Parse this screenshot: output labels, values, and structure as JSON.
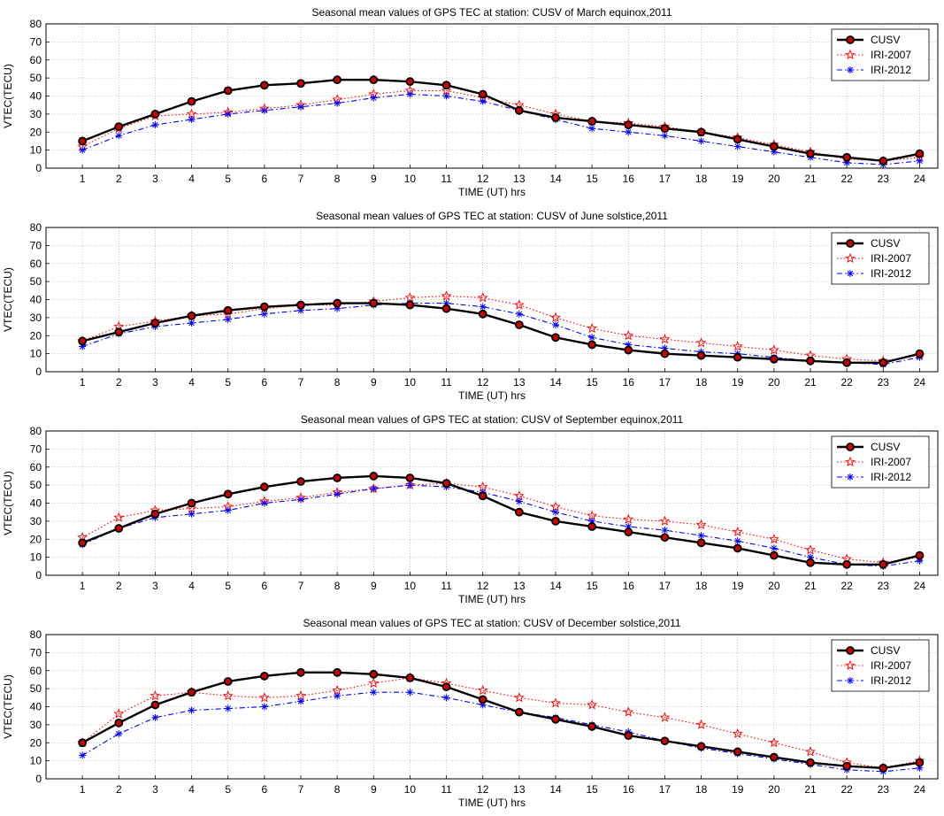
{
  "chart_data": [
    {
      "type": "line",
      "title": "Seasonal mean values of GPS TEC at station: CUSV of March equinox,2011",
      "xlabel": "TIME (UT) hrs",
      "ylabel": "VTEC(TECU)",
      "xlim": [
        0,
        24.5
      ],
      "ylim": [
        0,
        80
      ],
      "x": [
        1,
        2,
        3,
        4,
        5,
        6,
        7,
        8,
        9,
        10,
        11,
        12,
        13,
        14,
        15,
        16,
        17,
        18,
        19,
        20,
        21,
        22,
        23,
        24
      ],
      "yticks": [
        0,
        10,
        20,
        30,
        40,
        50,
        60,
        70,
        80
      ],
      "grid": true,
      "legend_position": "top-right",
      "series": [
        {
          "name": "CUSV",
          "values": [
            15,
            23,
            30,
            37,
            43,
            46,
            47,
            49,
            49,
            48,
            46,
            41,
            32,
            28,
            26,
            24,
            22,
            20,
            16,
            12,
            8,
            6,
            4,
            8
          ]
        },
        {
          "name": "IRI-2007",
          "values": [
            12,
            22,
            29,
            30,
            31,
            33,
            35,
            38,
            41,
            43,
            43,
            39,
            35,
            30,
            26,
            25,
            23,
            20,
            17,
            13,
            9,
            5,
            4,
            6
          ]
        },
        {
          "name": "IRI-2012",
          "values": [
            10,
            18,
            24,
            27,
            30,
            32,
            34,
            36,
            39,
            41,
            40,
            37,
            32,
            27,
            22,
            20,
            18,
            15,
            12,
            9,
            6,
            3,
            2,
            4
          ]
        }
      ]
    },
    {
      "type": "line",
      "title": "Seasonal mean values of GPS TEC at station: CUSV of June solstice,2011",
      "xlabel": "TIME (UT) hrs",
      "ylabel": "VTEC(TECU)",
      "xlim": [
        0,
        24.5
      ],
      "ylim": [
        0,
        80
      ],
      "x": [
        1,
        2,
        3,
        4,
        5,
        6,
        7,
        8,
        9,
        10,
        11,
        12,
        13,
        14,
        15,
        16,
        17,
        18,
        19,
        20,
        21,
        22,
        23,
        24
      ],
      "yticks": [
        0,
        10,
        20,
        30,
        40,
        50,
        60,
        70,
        80
      ],
      "grid": true,
      "legend_position": "top-right",
      "series": [
        {
          "name": "CUSV",
          "values": [
            17,
            22,
            27,
            31,
            34,
            36,
            37,
            38,
            38,
            37,
            35,
            32,
            26,
            19,
            15,
            12,
            10,
            9,
            8,
            7,
            6,
            5,
            5,
            10
          ]
        },
        {
          "name": "IRI-2007",
          "values": [
            17,
            25,
            28,
            31,
            32,
            35,
            37,
            37,
            39,
            41,
            42,
            41,
            37,
            30,
            24,
            20,
            18,
            16,
            14,
            12,
            9,
            7,
            6,
            9
          ]
        },
        {
          "name": "IRI-2012",
          "values": [
            14,
            21,
            25,
            27,
            29,
            32,
            34,
            35,
            37,
            38,
            38,
            36,
            32,
            26,
            19,
            15,
            13,
            11,
            10,
            8,
            6,
            5,
            4,
            8
          ]
        }
      ]
    },
    {
      "type": "line",
      "title": "Seasonal mean values of GPS TEC at station: CUSV of September equinox,2011",
      "xlabel": "TIME (UT) hrs",
      "ylabel": "VTEC(TECU)",
      "xlim": [
        0,
        24.5
      ],
      "ylim": [
        0,
        80
      ],
      "x": [
        1,
        2,
        3,
        4,
        5,
        6,
        7,
        8,
        9,
        10,
        11,
        12,
        13,
        14,
        15,
        16,
        17,
        18,
        19,
        20,
        21,
        22,
        23,
        24
      ],
      "yticks": [
        0,
        10,
        20,
        30,
        40,
        50,
        60,
        70,
        80
      ],
      "grid": true,
      "legend_position": "top-right",
      "series": [
        {
          "name": "CUSV",
          "values": [
            18,
            26,
            34,
            40,
            45,
            49,
            52,
            54,
            55,
            54,
            51,
            44,
            35,
            30,
            27,
            24,
            21,
            18,
            15,
            11,
            7,
            6,
            6,
            11
          ]
        },
        {
          "name": "IRI-2007",
          "values": [
            21,
            32,
            36,
            37,
            38,
            41,
            43,
            46,
            48,
            50,
            51,
            49,
            44,
            38,
            33,
            31,
            30,
            28,
            24,
            20,
            14,
            9,
            7,
            10
          ]
        },
        {
          "name": "IRI-2012",
          "values": [
            17,
            26,
            32,
            34,
            36,
            40,
            42,
            45,
            48,
            50,
            49,
            46,
            41,
            35,
            30,
            27,
            25,
            22,
            19,
            15,
            10,
            6,
            5,
            8
          ]
        }
      ]
    },
    {
      "type": "line",
      "title": "Seasonal mean values of GPS TEC at station: CUSV of December solstice,2011",
      "xlabel": "TIME (UT) hrs",
      "ylabel": "VTEC(TECU)",
      "xlim": [
        0,
        24.5
      ],
      "ylim": [
        0,
        80
      ],
      "x": [
        1,
        2,
        3,
        4,
        5,
        6,
        7,
        8,
        9,
        10,
        11,
        12,
        13,
        14,
        15,
        16,
        17,
        18,
        19,
        20,
        21,
        22,
        23,
        24
      ],
      "yticks": [
        0,
        10,
        20,
        30,
        40,
        50,
        60,
        70,
        80
      ],
      "grid": true,
      "legend_position": "top-right",
      "series": [
        {
          "name": "CUSV",
          "values": [
            20,
            31,
            41,
            48,
            54,
            57,
            59,
            59,
            58,
            56,
            51,
            44,
            37,
            33,
            29,
            24,
            21,
            18,
            15,
            12,
            9,
            7,
            6,
            9
          ]
        },
        {
          "name": "IRI-2007",
          "values": [
            20,
            36,
            46,
            48,
            46,
            45,
            46,
            49,
            53,
            56,
            53,
            49,
            45,
            42,
            41,
            37,
            34,
            30,
            25,
            20,
            15,
            9,
            6,
            10
          ]
        },
        {
          "name": "IRI-2012",
          "values": [
            13,
            25,
            34,
            38,
            39,
            40,
            43,
            46,
            48,
            48,
            45,
            41,
            37,
            34,
            30,
            26,
            21,
            17,
            14,
            11,
            8,
            5,
            4,
            6
          ]
        }
      ]
    }
  ],
  "series_styles": {
    "CUSV": {
      "color": "#000000",
      "marker": "circle-icon",
      "marker_fill": "#cc0000"
    },
    "IRI-2007": {
      "color": "#ff0000",
      "marker": "star-icon",
      "dash": "dotted"
    },
    "IRI-2012": {
      "color": "#0000ff",
      "marker": "asterisk-icon",
      "dash": "dash-dot"
    }
  }
}
